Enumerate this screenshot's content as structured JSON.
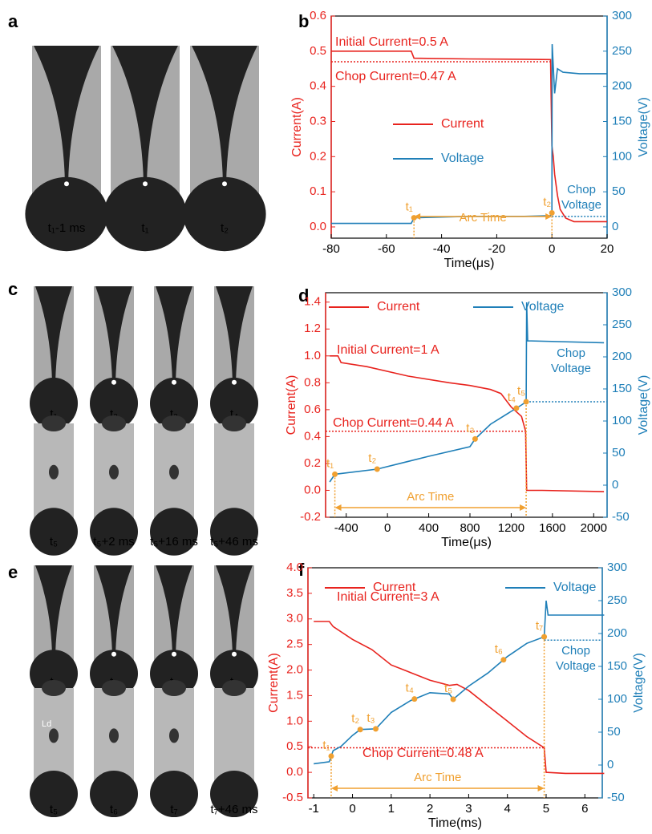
{
  "photos": [
    {
      "letter": "a",
      "labels": [
        "t₁-1 ms",
        "t₁",
        "t₂"
      ]
    },
    {
      "letter": "c",
      "labels": [
        "t₁",
        "t₂",
        "t₃",
        "t₄",
        "t₅",
        "t₅+2 ms",
        "t₅+16 ms",
        "t₅+46 ms"
      ]
    },
    {
      "letter": "e",
      "labels": [
        "t₁",
        "t₂",
        "t₃",
        "t₄",
        "t₅",
        "t₆",
        "t₇",
        "t₇+46 ms"
      ],
      "note": "Ld"
    }
  ],
  "chart_data": [
    {
      "type": "line",
      "panel": "b",
      "x_label": "Time(μs)",
      "y_label": "Current(A)",
      "y2_label": "Voltage(V)",
      "xlim": [
        -80,
        20
      ],
      "xticks": [
        -80,
        -60,
        -40,
        -20,
        0,
        20
      ],
      "ylim": [
        -0.032,
        0.6
      ],
      "yticks": [
        {
          "value": 0,
          "label": "0.0"
        },
        0.1,
        0.2,
        0.3,
        0.4,
        0.5,
        0.6
      ],
      "y2lim": [
        -16,
        300
      ],
      "y2ticks": [
        0,
        50,
        100,
        150,
        200,
        250,
        300
      ],
      "series": [
        {
          "name": "Current",
          "color": "#e8231e",
          "x": [
            -80,
            -51,
            -50,
            -30,
            -10,
            -0.5,
            0,
            0.5,
            1,
            2,
            3,
            5,
            8,
            20
          ],
          "values": [
            0.5,
            0.5,
            0.48,
            0.478,
            0.477,
            0.476,
            0.23,
            0.2,
            0.15,
            0.09,
            0.05,
            0.025,
            0.015,
            0.015
          ]
        },
        {
          "name": "Voltage",
          "color": "#1f7fb8",
          "axis": "y2",
          "x": [
            -80,
            -51,
            -50,
            -30,
            -10,
            -0.5,
            0,
            0.1,
            1,
            2,
            4,
            10,
            20
          ],
          "values": [
            5,
            5,
            13,
            15,
            15,
            16,
            20,
            260,
            190,
            225,
            220,
            218,
            218
          ]
        }
      ],
      "markers": {
        "x": [
          -50,
          0
        ],
        "labels": [
          "t₁",
          "t₂"
        ],
        "color": "#f0a030"
      },
      "chop_current": 0.47,
      "chop_voltage": 15,
      "annotations": {
        "initial": "Initial Current=0.5 A",
        "chop_current": "Chop Current=0.47 A",
        "chop_voltage": [
          "Chop",
          "Voltage"
        ],
        "arc_time": "Arc Time"
      }
    },
    {
      "type": "line",
      "panel": "d",
      "x_label": "Time(μs)",
      "y_label": "Current(A)",
      "y2_label": "Voltage(V)",
      "xlim": [
        -600,
        2130
      ],
      "xticks": [
        -400,
        0,
        400,
        800,
        1200,
        1600,
        2000
      ],
      "ylim": [
        -0.2,
        1.47
      ],
      "yticks": [
        -0.2,
        {
          "value": 0,
          "label": "0.0"
        },
        0.2,
        0.4,
        0.6,
        0.8,
        {
          "value": 1,
          "label": "1.0"
        },
        1.2,
        1.4
      ],
      "y2lim": [
        -50,
        300
      ],
      "y2ticks": [
        -50,
        0,
        50,
        100,
        150,
        200,
        250,
        300
      ],
      "series": [
        {
          "name": "Current",
          "color": "#e8231e",
          "x": [
            -560,
            -480,
            -450,
            -200,
            200,
            600,
            800,
            1000,
            1100,
            1200,
            1300,
            1340,
            1350,
            1500,
            2100
          ],
          "values": [
            1.0,
            1.0,
            0.95,
            0.92,
            0.85,
            0.8,
            0.78,
            0.75,
            0.72,
            0.62,
            0.55,
            0.44,
            0.0,
            0.0,
            -0.01
          ]
        },
        {
          "name": "Voltage",
          "color": "#1f7fb8",
          "axis": "y2",
          "x": [
            -560,
            -510,
            -100,
            400,
            800,
            850,
            1000,
            1200,
            1300,
            1345,
            1350,
            1360,
            2100
          ],
          "values": [
            5,
            17,
            25,
            45,
            60,
            72,
            95,
            115,
            125,
            130,
            285,
            225,
            222
          ]
        }
      ],
      "markers": {
        "x": [
          -510,
          -100,
          850,
          1250,
          1345
        ],
        "labels": [
          "t₁",
          "t₂",
          "t₃",
          "t₄",
          "t₅"
        ],
        "color": "#f0a030"
      },
      "chop_current": 0.44,
      "chop_voltage": 130,
      "annotations": {
        "initial": "Initial Current=1 A",
        "chop_current": "Chop Current=0.44 A",
        "chop_voltage": [
          "Chop",
          "Voltage"
        ],
        "arc_time": "Arc Time"
      }
    },
    {
      "type": "line",
      "panel": "f",
      "x_label": "Time(ms)",
      "y_label": "Current(A)",
      "y2_label": "Voltage(V)",
      "xlim": [
        -1.15,
        6.45
      ],
      "xticks": [
        -1,
        0,
        1,
        2,
        3,
        4,
        5,
        6
      ],
      "ylim": [
        -0.5,
        4.0
      ],
      "yticks": [
        -0.5,
        {
          "value": 0,
          "label": "0.0"
        },
        0.5,
        {
          "value": 1,
          "label": "1.0"
        },
        1.5,
        {
          "value": 2,
          "label": "2.0"
        },
        2.5,
        {
          "value": 3,
          "label": "3.0"
        },
        3.5,
        {
          "value": 4,
          "label": "4.0"
        }
      ],
      "y2lim": [
        -50,
        300
      ],
      "y2ticks": [
        -50,
        0,
        50,
        100,
        150,
        200,
        250,
        300
      ],
      "series": [
        {
          "name": "Current",
          "color": "#e8231e",
          "x": [
            -1,
            -0.6,
            -0.5,
            0,
            0.5,
            1,
            1.5,
            2,
            2.5,
            2.7,
            3,
            3.5,
            4,
            4.5,
            4.95,
            5,
            5.5,
            6.5
          ],
          "values": [
            2.95,
            2.95,
            2.85,
            2.6,
            2.4,
            2.1,
            1.95,
            1.8,
            1.7,
            1.72,
            1.6,
            1.3,
            1.0,
            0.7,
            0.48,
            0.0,
            -0.02,
            -0.02
          ]
        },
        {
          "name": "Voltage",
          "color": "#1f7fb8",
          "axis": "y2",
          "x": [
            -1,
            -0.6,
            -0.5,
            -0.3,
            0,
            0.2,
            0.6,
            1,
            1.5,
            2,
            2.5,
            2.6,
            3,
            3.5,
            4,
            4.5,
            4.95,
            5,
            5.05,
            6.5
          ],
          "values": [
            2,
            5,
            22,
            28,
            45,
            54,
            55,
            80,
            98,
            110,
            108,
            100,
            120,
            140,
            165,
            185,
            195,
            250,
            228,
            228
          ]
        }
      ],
      "markers": {
        "x": [
          -0.55,
          0.2,
          0.6,
          1.6,
          2.6,
          3.9,
          4.95
        ],
        "labels": [
          "t₁",
          "t₂",
          "t₃",
          "t₄",
          "t₅",
          "t₆",
          "t₇"
        ],
        "color": "#f0a030"
      },
      "chop_current": 0.48,
      "chop_voltage": 190,
      "annotations": {
        "initial": "Initial Current=3 A",
        "chop_current": "Chop Current=0.48 A",
        "chop_voltage": [
          "Chop",
          "Voltage"
        ],
        "arc_time": "Arc Time"
      }
    }
  ]
}
